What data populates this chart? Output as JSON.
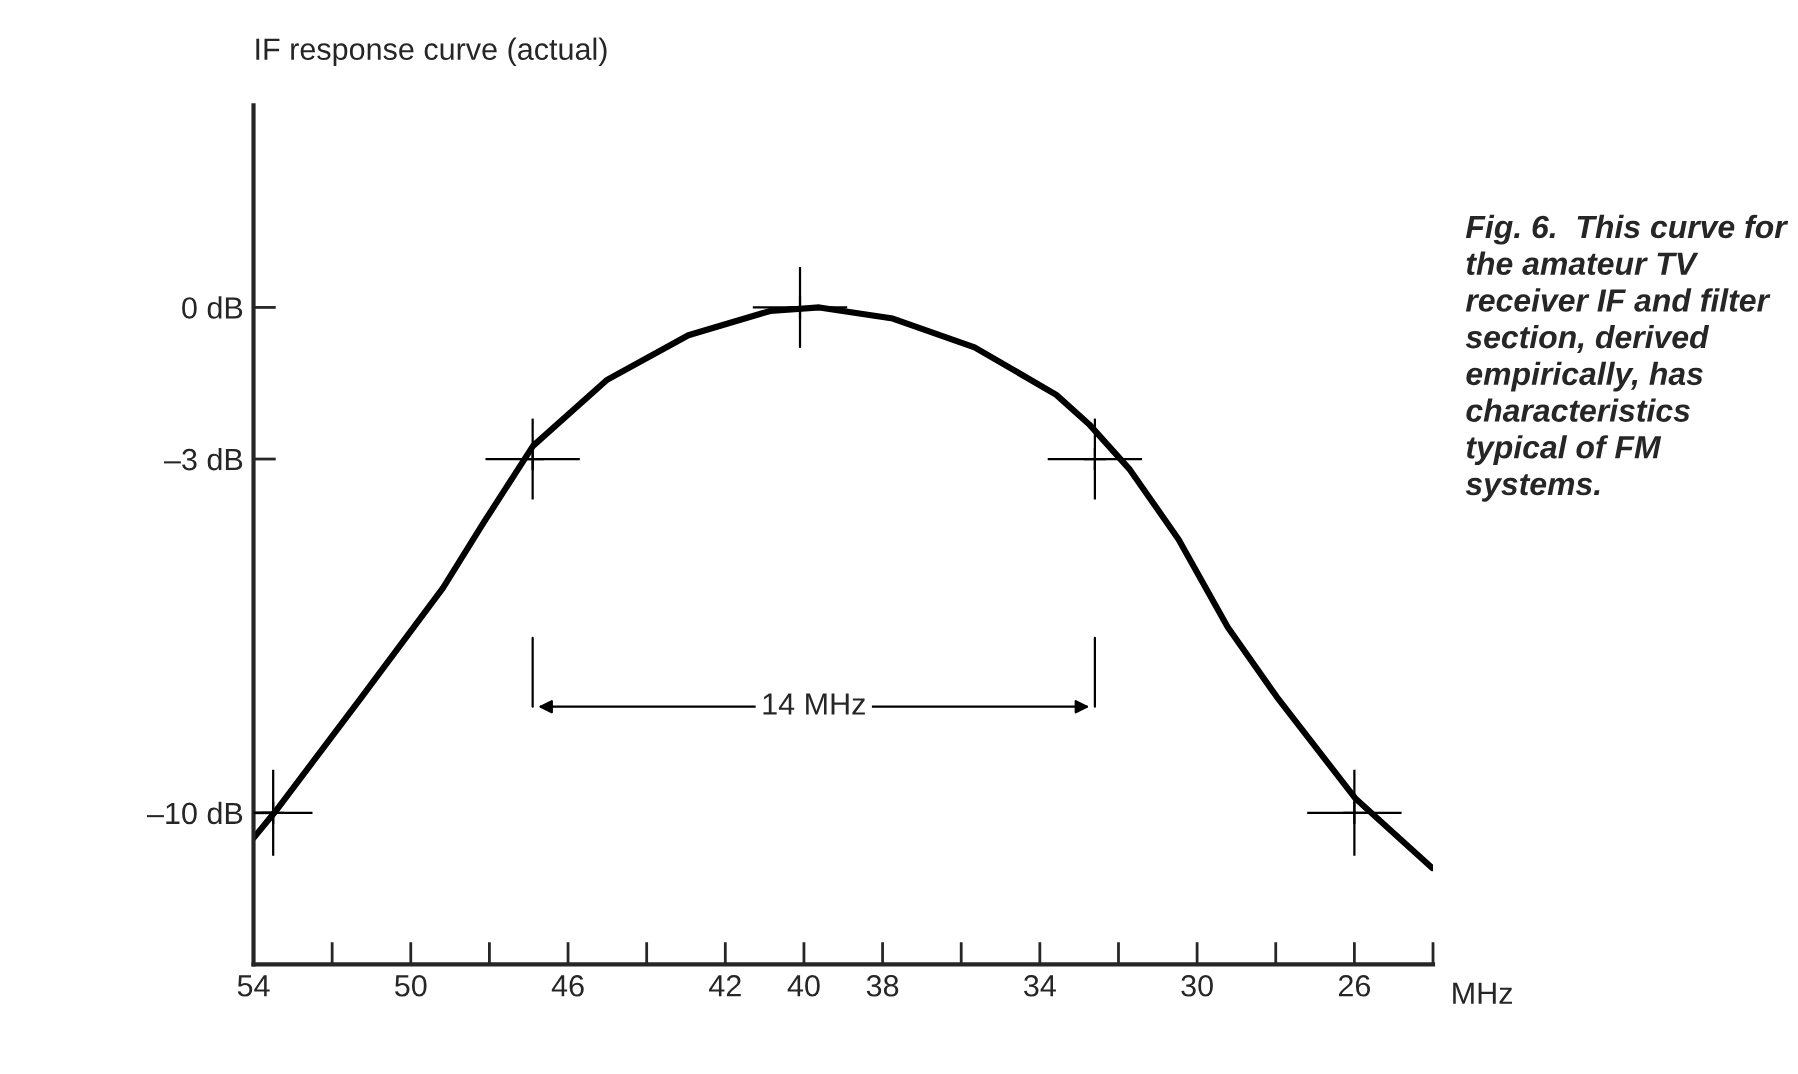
{
  "chart_data": {
    "type": "line",
    "title": "IF response curve (actual)",
    "xlabel": "MHz",
    "series": [
      {
        "type": "line",
        "color": "#000000",
        "x": [
          54,
          53.44,
          51.26,
          49.18,
          48.14,
          46.89,
          45.02,
          42.94,
          40.86,
          39.61,
          37.74,
          35.66,
          33.58,
          32.75,
          31.71,
          30.47,
          29.22,
          27.97,
          25.98,
          24.02
        ],
        "values": [
          -10.5,
          -9.97,
          -7.72,
          -5.55,
          -4.25,
          -2.74,
          -1.44,
          -0.55,
          -0.07,
          0,
          -0.22,
          -0.79,
          -1.73,
          -2.31,
          -3.21,
          -4.59,
          -6.33,
          -7.71,
          -9.71,
          -11.09
        ]
      },
      {
        "type": "scatter",
        "marker": "cross",
        "color": "#000000",
        "x": [
          53.5,
          46.9,
          40.1,
          32.6,
          26
        ],
        "values": [
          -10,
          -3,
          0,
          -3,
          -10
        ],
        "errors": [
          0.85,
          0.8,
          0.8,
          0.8,
          0.85
        ],
        "xerrors": [
          1.0,
          1.2,
          1.2,
          1.2,
          1.2
        ]
      }
    ],
    "xlim": [
      54,
      24
    ],
    "ylim": [
      -13,
      4
    ],
    "xticks": [
      54,
      {
        "value": 52,
        "label": null
      },
      50,
      {
        "value": 48,
        "label": null
      },
      46,
      {
        "value": 44,
        "label": null
      },
      42,
      40,
      38,
      {
        "value": 36,
        "label": null
      },
      34,
      {
        "value": 32,
        "label": null
      },
      30,
      {
        "value": 28,
        "label": null
      },
      26,
      {
        "value": 24,
        "label": null
      }
    ],
    "yticks": [
      {
        "value": 0,
        "label": "0 dB"
      },
      {
        "value": -3,
        "label": "–3 dB"
      },
      {
        "value": -10,
        "label": "–10 dB"
      }
    ],
    "grid": false,
    "legend": false,
    "annotations": [
      "14 MHz",
      "Fig. 6.  This curve for the amateur TV receiver IF and filter section, derived empirically, has characteristics typical of FM systems."
    ]
  }
}
